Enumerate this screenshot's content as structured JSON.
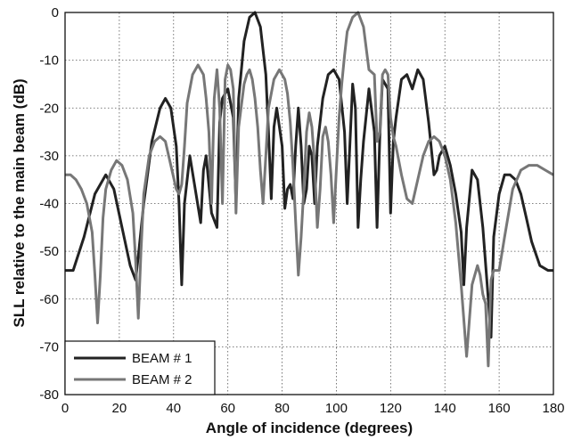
{
  "chart_data": {
    "type": "line",
    "title": "",
    "xlabel": "Angle of incidence (degrees)",
    "ylabel": "SLL relative to the main beam (dB)",
    "xlim": [
      0,
      180
    ],
    "ylim": [
      -80,
      0
    ],
    "xticks": [
      0,
      20,
      40,
      60,
      80,
      100,
      120,
      140,
      160,
      180
    ],
    "yticks": [
      0,
      -10,
      -20,
      -30,
      -40,
      -50,
      -60,
      -70,
      -80
    ],
    "grid": true,
    "grid_style": "dotted",
    "legend_position": "bottom-left",
    "series": [
      {
        "name": "BEAM # 1",
        "color": "#222222",
        "x": [
          0,
          3,
          7,
          11,
          15,
          18,
          21,
          24,
          26,
          27,
          29,
          32,
          35,
          37,
          39,
          41,
          42,
          43,
          44,
          46,
          48,
          50,
          51,
          52,
          54,
          56,
          57,
          58,
          60,
          62,
          63,
          64,
          66,
          68,
          70,
          72,
          74,
          75,
          76,
          77,
          78,
          80,
          81,
          82,
          83,
          84,
          85,
          86,
          87,
          88,
          89,
          90,
          91,
          92,
          93,
          95,
          97,
          99,
          101,
          103,
          104,
          106,
          107,
          108,
          109,
          110,
          112,
          114,
          115,
          116,
          117,
          118,
          119,
          120,
          121,
          122,
          124,
          126,
          128,
          130,
          132,
          134,
          136,
          137,
          138,
          140,
          142,
          144,
          146,
          147,
          148,
          150,
          152,
          154,
          156,
          157,
          158,
          160,
          162,
          164,
          166,
          168,
          170,
          172,
          175,
          178,
          180
        ],
        "y": [
          -54,
          -54,
          -47,
          -38,
          -34,
          -37,
          -45,
          -53,
          -56,
          -51,
          -40,
          -27,
          -20,
          -18,
          -20,
          -28,
          -40,
          -57,
          -40,
          -30,
          -37,
          -44,
          -33,
          -30,
          -42,
          -45,
          -23,
          -18,
          -16,
          -22,
          -40,
          -18,
          -6,
          -1,
          0,
          -3,
          -13,
          -25,
          -39,
          -24,
          -20,
          -28,
          -41,
          -37,
          -36,
          -39,
          -28,
          -20,
          -28,
          -40,
          -37,
          -28,
          -30,
          -40,
          -28,
          -18,
          -13,
          -12,
          -14,
          -25,
          -40,
          -15,
          -20,
          -45,
          -35,
          -27,
          -16,
          -25,
          -45,
          -26,
          -14,
          -15,
          -16,
          -42,
          -27,
          -22,
          -14,
          -13,
          -16,
          -12,
          -14,
          -23,
          -34,
          -33,
          -30,
          -28,
          -32,
          -38,
          -46,
          -57,
          -45,
          -33,
          -35,
          -45,
          -60,
          -68,
          -47,
          -38,
          -34,
          -34,
          -35,
          -38,
          -43,
          -48,
          -53,
          -54,
          -54
        ]
      },
      {
        "name": "BEAM # 2",
        "color": "#777777",
        "x": [
          0,
          2,
          4,
          6,
          8,
          10,
          11,
          12,
          13,
          14,
          15,
          17,
          19,
          21,
          23,
          25,
          26,
          27,
          28,
          29,
          31,
          33,
          35,
          37,
          39,
          41,
          42,
          43,
          44,
          45,
          47,
          49,
          51,
          52,
          53,
          54,
          55,
          56,
          57,
          58,
          59,
          60,
          61,
          62,
          63,
          64,
          66,
          67,
          68,
          69,
          70,
          71,
          72,
          73,
          74,
          75,
          77,
          79,
          81,
          82,
          83,
          84,
          85,
          86,
          87,
          88,
          89,
          90,
          91,
          92,
          93,
          94,
          95,
          96,
          97,
          98,
          99,
          100,
          101,
          102,
          103,
          104,
          106,
          108,
          110,
          112,
          114,
          115,
          116,
          117,
          118,
          119,
          120,
          121,
          122,
          124,
          126,
          128,
          130,
          132,
          134,
          136,
          138,
          140,
          142,
          144,
          146,
          148,
          150,
          152,
          153,
          154,
          155,
          156,
          157,
          158,
          160,
          162,
          165,
          168,
          171,
          174,
          177,
          180
        ],
        "y": [
          -34,
          -34,
          -35,
          -37,
          -40,
          -46,
          -55,
          -65,
          -55,
          -43,
          -37,
          -33,
          -31,
          -32,
          -35,
          -42,
          -52,
          -64,
          -50,
          -38,
          -30,
          -27,
          -26,
          -27,
          -32,
          -37,
          -38,
          -36,
          -28,
          -19,
          -13,
          -11,
          -13,
          -18,
          -25,
          -40,
          -18,
          -12,
          -20,
          -40,
          -14,
          -11,
          -12,
          -16,
          -42,
          -24,
          -15,
          -13,
          -12,
          -14,
          -18,
          -24,
          -33,
          -40,
          -30,
          -20,
          -14,
          -12,
          -14,
          -17,
          -23,
          -32,
          -44,
          -55,
          -47,
          -37,
          -25,
          -21,
          -24,
          -32,
          -45,
          -37,
          -26,
          -24,
          -27,
          -34,
          -44,
          -33,
          -22,
          -15,
          -9,
          -4,
          -1,
          0,
          -3,
          -12,
          -13,
          -27,
          -25,
          -13,
          -12,
          -13,
          -22,
          -26,
          -28,
          -34,
          -39,
          -40,
          -35,
          -30,
          -27,
          -26,
          -27,
          -30,
          -35,
          -44,
          -57,
          -72,
          -57,
          -53,
          -55,
          -59,
          -61,
          -74,
          -56,
          -54,
          -54,
          -47,
          -37,
          -33,
          -32,
          -32,
          -33,
          -34
        ]
      }
    ]
  }
}
